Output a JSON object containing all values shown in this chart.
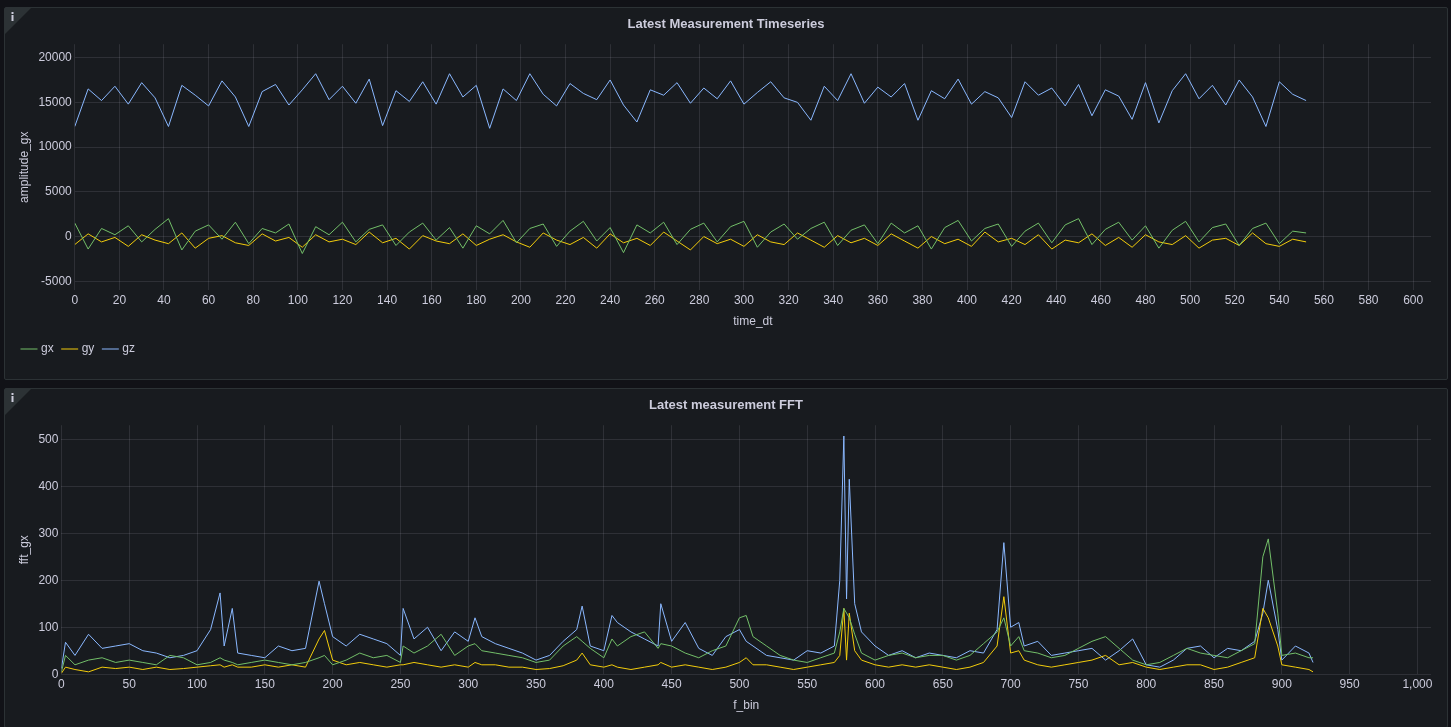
{
  "chart_data": [
    {
      "type": "line",
      "title": "Latest Measurement Timeseries",
      "xlabel": "time_dt",
      "ylabel": "amplitude_gx",
      "x": [
        0,
        6,
        12,
        18,
        24,
        30,
        36,
        42,
        48,
        54,
        60,
        66,
        72,
        78,
        84,
        90,
        96,
        102,
        108,
        114,
        120,
        126,
        132,
        138,
        144,
        150,
        156,
        162,
        168,
        174,
        180,
        186,
        192,
        198,
        204,
        210,
        216,
        222,
        228,
        234,
        240,
        246,
        252,
        258,
        264,
        270,
        276,
        282,
        288,
        294,
        300,
        306,
        312,
        318,
        324,
        330,
        336,
        342,
        348,
        354,
        360,
        366,
        372,
        378,
        384,
        390,
        396,
        402,
        408,
        414,
        420,
        426,
        432,
        438,
        444,
        450,
        456,
        462,
        468,
        474,
        480,
        486,
        492,
        498,
        504,
        510,
        516,
        522,
        528,
        534,
        540,
        546,
        552
      ],
      "series": [
        {
          "name": "gx",
          "color": "#73bf69",
          "values": [
            1500,
            -1400,
            900,
            200,
            1200,
            -600,
            800,
            2000,
            -1500,
            600,
            1300,
            -300,
            1600,
            -800,
            900,
            400,
            1400,
            -1900,
            1100,
            200,
            1600,
            -600,
            800,
            1300,
            -1000,
            500,
            1500,
            -400,
            1000,
            -1300,
            1200,
            300,
            1800,
            -700,
            900,
            1400,
            -1100,
            600,
            1700,
            -500,
            1000,
            -1800,
            1300,
            400,
            1600,
            -900,
            800,
            1500,
            -600,
            1100,
            1700,
            -1200,
            500,
            1400,
            -300,
            900,
            1600,
            -1000,
            700,
            1300,
            -800,
            1500,
            400,
            1200,
            -1400,
            1000,
            1800,
            -500,
            900,
            1400,
            -1100,
            600,
            1500,
            -700,
            1300,
            2000,
            -900,
            800,
            1600,
            -400,
            1200,
            -1300,
            700,
            1700,
            -600,
            1000,
            1400,
            -1000,
            900,
            1500,
            -800,
            600,
            400
          ]
        },
        {
          "name": "gy",
          "color": "#f2cc0c",
          "values": [
            -900,
            300,
            -600,
            -100,
            -1100,
            200,
            -400,
            -800,
            400,
            -1300,
            -200,
            100,
            -700,
            -1000,
            300,
            -500,
            -100,
            -1200,
            200,
            -600,
            -300,
            -900,
            500,
            -700,
            -200,
            -1400,
            100,
            -500,
            -800,
            300,
            -1000,
            -300,
            200,
            -600,
            -1200,
            400,
            -400,
            -900,
            -100,
            -1300,
            300,
            -700,
            -200,
            -1000,
            500,
            -500,
            -1500,
            0,
            -800,
            -300,
            -1100,
            200,
            -600,
            -900,
            400,
            -400,
            -1200,
            100,
            -700,
            -200,
            -1000,
            300,
            -500,
            -1300,
            0,
            -800,
            -300,
            -1100,
            500,
            -600,
            -200,
            -900,
            200,
            -1400,
            -400,
            -700,
            300,
            -1000,
            -100,
            -1200,
            200,
            -600,
            -900,
            100,
            -1300,
            -400,
            -200,
            -1000,
            400,
            -800,
            -1100,
            -300,
            -600
          ]
        },
        {
          "name": "gz",
          "color": "#8ab8ff",
          "values": [
            12300,
            16500,
            15200,
            16800,
            14800,
            17200,
            15500,
            12300,
            16900,
            15800,
            14600,
            17400,
            15600,
            12300,
            16200,
            17000,
            14700,
            16400,
            18200,
            15300,
            16800,
            14900,
            17600,
            12400,
            16300,
            15100,
            17300,
            14800,
            18200,
            15600,
            16900,
            12100,
            16500,
            15200,
            18200,
            15900,
            14600,
            17100,
            16000,
            15300,
            17500,
            14700,
            12800,
            16400,
            15800,
            17200,
            14900,
            16600,
            15400,
            17400,
            14800,
            16100,
            17300,
            15500,
            15000,
            13000,
            16800,
            15200,
            18200,
            14900,
            16700,
            15600,
            17100,
            13000,
            16300,
            15400,
            17600,
            14800,
            16200,
            15500,
            13300,
            17300,
            15800,
            16600,
            14600,
            17000,
            13500,
            16400,
            15700,
            13100,
            17200,
            12700,
            16300,
            18200,
            15400,
            16900,
            14700,
            17500,
            15600,
            12300,
            17300,
            15900,
            15200
          ]
        }
      ],
      "xlim": [
        0,
        608
      ],
      "xticks": [
        0,
        20,
        40,
        60,
        80,
        100,
        120,
        140,
        160,
        180,
        200,
        220,
        240,
        260,
        280,
        300,
        320,
        340,
        360,
        380,
        400,
        420,
        440,
        460,
        480,
        500,
        520,
        540,
        560,
        580,
        600
      ],
      "ylim": [
        -6000,
        21500
      ],
      "yticks": [
        -5000,
        0,
        5000,
        10000,
        15000,
        20000
      ],
      "grid": true,
      "legend": "bottom",
      "marker": "none",
      "line_style": "solid"
    },
    {
      "type": "line",
      "title": "Latest measurement FFT",
      "xlabel": "f_bin",
      "ylabel": "fft_gx",
      "x": [
        0,
        3,
        10,
        20,
        30,
        40,
        50,
        60,
        70,
        80,
        90,
        100,
        110,
        117,
        120,
        126,
        130,
        140,
        150,
        160,
        170,
        180,
        190,
        194,
        200,
        210,
        220,
        230,
        240,
        250,
        252,
        260,
        270,
        280,
        290,
        300,
        305,
        310,
        320,
        330,
        340,
        350,
        360,
        370,
        380,
        384,
        390,
        400,
        406,
        410,
        420,
        430,
        440,
        442,
        450,
        460,
        470,
        480,
        490,
        500,
        505,
        510,
        520,
        530,
        540,
        550,
        560,
        570,
        574,
        577,
        579,
        581,
        585,
        590,
        600,
        610,
        620,
        630,
        640,
        650,
        660,
        670,
        680,
        690,
        695,
        700,
        706,
        710,
        720,
        730,
        740,
        750,
        760,
        770,
        780,
        790,
        800,
        810,
        820,
        830,
        840,
        850,
        860,
        870,
        880,
        886,
        890,
        897,
        900,
        910,
        920,
        923
      ],
      "series": [
        {
          "color": "#73bf69",
          "values": [
            5,
            40,
            20,
            30,
            35,
            25,
            30,
            25,
            20,
            40,
            35,
            20,
            25,
            35,
            30,
            25,
            20,
            25,
            30,
            25,
            20,
            25,
            35,
            40,
            20,
            30,
            45,
            35,
            40,
            25,
            60,
            45,
            60,
            85,
            40,
            60,
            65,
            50,
            45,
            40,
            35,
            25,
            30,
            60,
            80,
            70,
            55,
            35,
            75,
            60,
            80,
            90,
            55,
            65,
            60,
            45,
            35,
            50,
            60,
            120,
            125,
            80,
            60,
            40,
            30,
            25,
            35,
            45,
            90,
            140,
            130,
            120,
            85,
            45,
            30,
            40,
            45,
            35,
            40,
            40,
            30,
            40,
            65,
            90,
            120,
            60,
            80,
            50,
            45,
            35,
            40,
            55,
            70,
            80,
            55,
            30,
            20,
            25,
            40,
            55,
            45,
            40,
            35,
            50,
            65,
            250,
            288,
            130,
            40,
            45,
            35,
            35
          ]
        },
        {
          "color": "#f2cc0c",
          "values": [
            2,
            15,
            10,
            5,
            15,
            12,
            15,
            10,
            15,
            10,
            12,
            15,
            18,
            20,
            15,
            20,
            15,
            15,
            20,
            15,
            20,
            15,
            75,
            93,
            30,
            20,
            25,
            20,
            15,
            20,
            20,
            25,
            20,
            15,
            20,
            15,
            25,
            20,
            20,
            15,
            15,
            10,
            12,
            18,
            30,
            45,
            20,
            15,
            20,
            15,
            10,
            15,
            20,
            25,
            15,
            20,
            15,
            10,
            15,
            25,
            35,
            20,
            20,
            15,
            10,
            15,
            20,
            25,
            40,
            140,
            30,
            130,
            50,
            30,
            20,
            15,
            20,
            15,
            20,
            15,
            10,
            15,
            25,
            60,
            165,
            45,
            50,
            30,
            20,
            15,
            20,
            25,
            30,
            40,
            20,
            25,
            15,
            10,
            15,
            20,
            20,
            10,
            15,
            25,
            35,
            140,
            120,
            60,
            20,
            15,
            10,
            5
          ]
        },
        {
          "color": "#8ab8ff",
          "values": [
            12,
            68,
            40,
            85,
            55,
            60,
            65,
            50,
            45,
            35,
            40,
            50,
            95,
            173,
            60,
            140,
            45,
            40,
            35,
            60,
            50,
            55,
            198,
            150,
            80,
            60,
            85,
            75,
            65,
            40,
            140,
            75,
            100,
            50,
            90,
            70,
            120,
            80,
            65,
            55,
            45,
            30,
            40,
            70,
            95,
            145,
            60,
            50,
            125,
            110,
            90,
            75,
            60,
            150,
            70,
            110,
            55,
            40,
            80,
            95,
            70,
            60,
            40,
            35,
            30,
            50,
            45,
            60,
            200,
            507,
            160,
            415,
            150,
            90,
            60,
            40,
            50,
            35,
            45,
            40,
            35,
            50,
            45,
            95,
            280,
            100,
            110,
            60,
            70,
            40,
            45,
            50,
            55,
            30,
            50,
            75,
            20,
            15,
            30,
            55,
            60,
            35,
            55,
            50,
            70,
            130,
            200,
            95,
            30,
            60,
            45,
            25
          ]
        }
      ],
      "xlim": [
        0,
        1010
      ],
      "xticks": [
        0,
        50,
        100,
        150,
        200,
        250,
        300,
        350,
        400,
        450,
        500,
        550,
        600,
        650,
        700,
        750,
        800,
        850,
        900,
        950,
        {
          "value": 1000,
          "label": "1,000"
        }
      ],
      "ylim": [
        0,
        530
      ],
      "yticks": [
        0,
        100,
        200,
        300,
        400,
        500
      ],
      "grid": true,
      "marker": "none",
      "line_style": "solid"
    }
  ]
}
